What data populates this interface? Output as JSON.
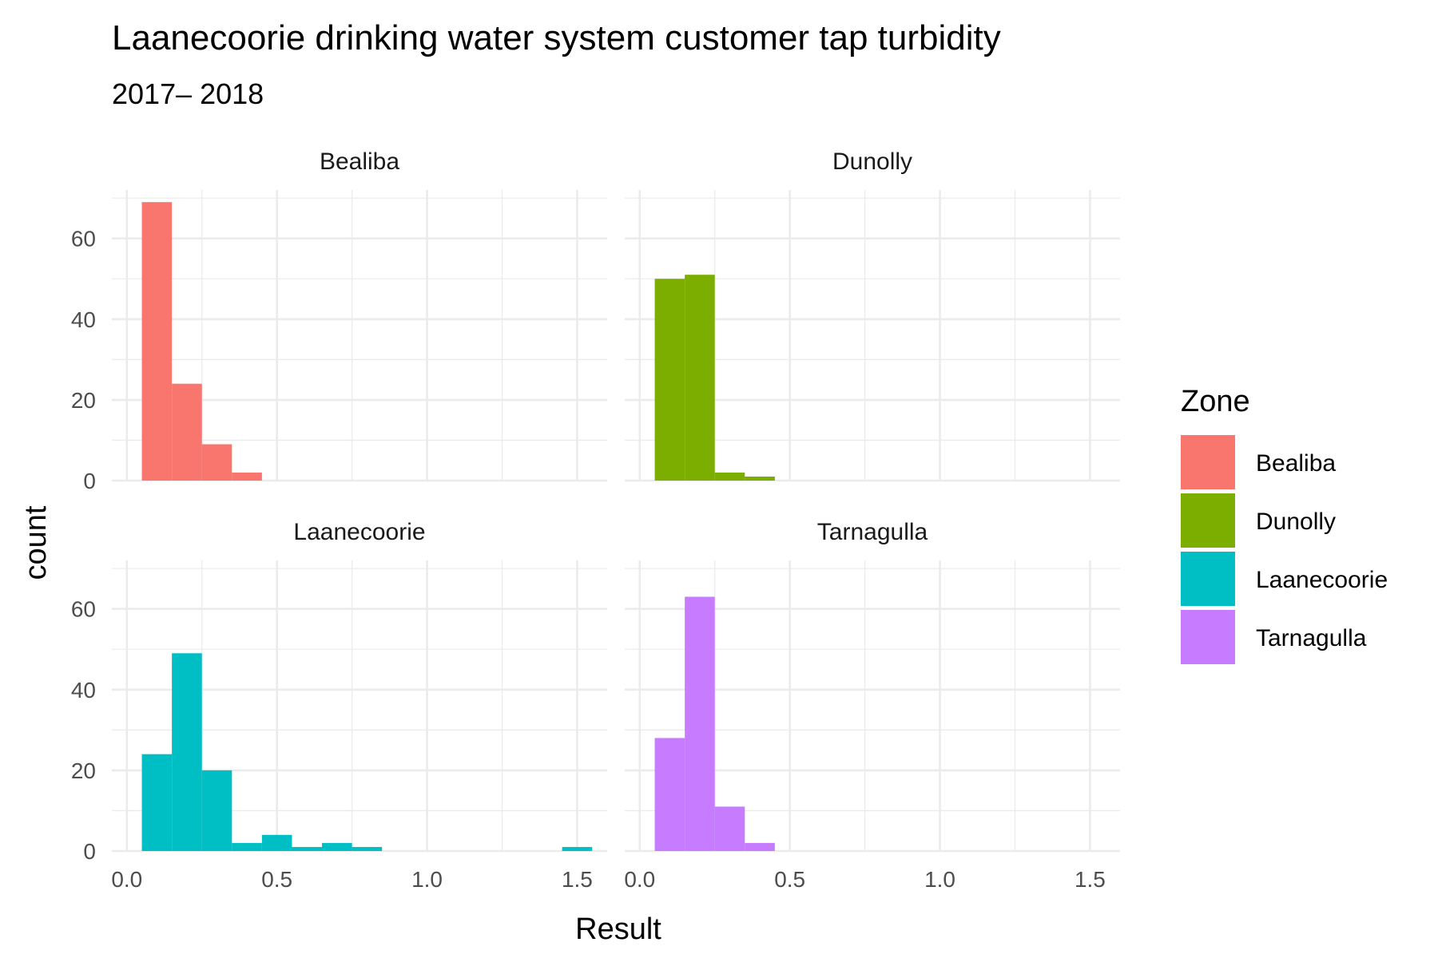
{
  "chart_data": {
    "type": "bar",
    "title": "Laanecoorie drinking water system customer tap turbidity",
    "subtitle": "2017– 2018",
    "xlabel": "Result",
    "ylabel": "count",
    "xlim": [
      -0.05,
      1.6
    ],
    "ylim": [
      0,
      72
    ],
    "x_ticks": [
      0.0,
      0.5,
      1.0,
      1.5
    ],
    "x_tick_labels": [
      "0.0",
      "0.5",
      "1.0",
      "1.5"
    ],
    "y_ticks": [
      0,
      20,
      40,
      60
    ],
    "y_tick_labels": [
      "0",
      "20",
      "40",
      "60"
    ],
    "bin_width": 0.1,
    "grid": true,
    "legend": {
      "title": "Zone",
      "position": "right",
      "entries": [
        {
          "name": "Bealiba",
          "color": "#F8766D"
        },
        {
          "name": "Dunolly",
          "color": "#7CAE00"
        },
        {
          "name": "Laanecoorie",
          "color": "#00BFC4"
        },
        {
          "name": "Tarnagulla",
          "color": "#C77CFF"
        }
      ]
    },
    "facets": [
      {
        "name": "Bealiba",
        "color": "#F8766D",
        "bins": [
          {
            "x": 0.1,
            "count": 69
          },
          {
            "x": 0.2,
            "count": 24
          },
          {
            "x": 0.3,
            "count": 9
          },
          {
            "x": 0.4,
            "count": 2
          }
        ]
      },
      {
        "name": "Dunolly",
        "color": "#7CAE00",
        "bins": [
          {
            "x": 0.1,
            "count": 50
          },
          {
            "x": 0.2,
            "count": 51
          },
          {
            "x": 0.3,
            "count": 2
          },
          {
            "x": 0.4,
            "count": 1
          }
        ]
      },
      {
        "name": "Laanecoorie",
        "color": "#00BFC4",
        "bins": [
          {
            "x": 0.1,
            "count": 24
          },
          {
            "x": 0.2,
            "count": 49
          },
          {
            "x": 0.3,
            "count": 20
          },
          {
            "x": 0.4,
            "count": 2
          },
          {
            "x": 0.5,
            "count": 4
          },
          {
            "x": 0.6,
            "count": 1
          },
          {
            "x": 0.7,
            "count": 2
          },
          {
            "x": 0.8,
            "count": 1
          },
          {
            "x": 1.5,
            "count": 1
          }
        ]
      },
      {
        "name": "Tarnagulla",
        "color": "#C77CFF",
        "bins": [
          {
            "x": 0.1,
            "count": 28
          },
          {
            "x": 0.2,
            "count": 63
          },
          {
            "x": 0.3,
            "count": 11
          },
          {
            "x": 0.4,
            "count": 2
          }
        ]
      }
    ]
  }
}
